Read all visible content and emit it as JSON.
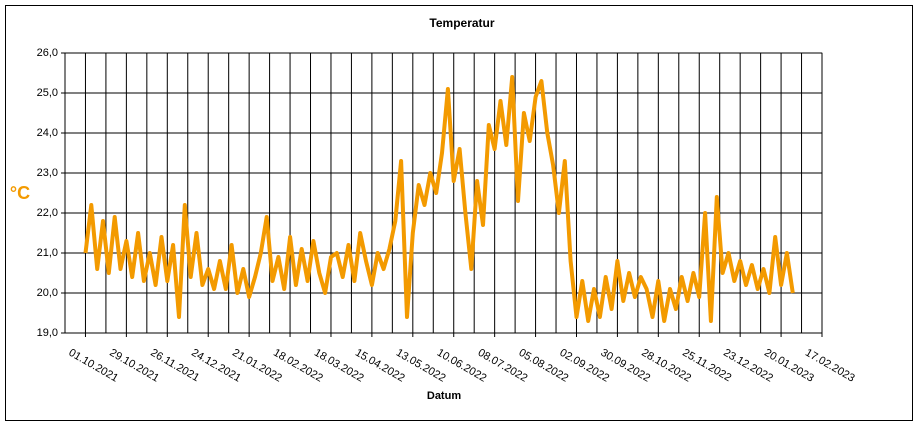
{
  "chart_data": {
    "type": "line",
    "title": "Temperatur",
    "x_label": "Datum",
    "y_label": "°C",
    "color": "#f39a00",
    "grid": true,
    "xlim": [
      "17.09.2021",
      "17.02.2023"
    ],
    "xticks": [
      "01.10.2021",
      "29.10.2021",
      "26.11.2021",
      "24.12.2021",
      "21.01.2022",
      "18.02.2022",
      "18.03.2022",
      "15.04.2022",
      "13.05.2022",
      "10.06.2022",
      "08.07.2022",
      "05.08.2022",
      "02.09.2022",
      "30.09.2022",
      "28.10.2022",
      "25.11.2022",
      "23.12.2022",
      "20.01.2023",
      "17.02.2023"
    ],
    "ylim": [
      19,
      26
    ],
    "yticks": [
      {
        "value": 19,
        "label": "19,0"
      },
      {
        "value": 20,
        "label": "20,0"
      },
      {
        "value": 21,
        "label": "21,0"
      },
      {
        "value": 22,
        "label": "22,0"
      },
      {
        "value": 23,
        "label": "23,0"
      },
      {
        "value": 24,
        "label": "24,0"
      },
      {
        "value": 25,
        "label": "25,0"
      },
      {
        "value": 26,
        "label": "26,0"
      }
    ],
    "x": [
      "01.10.2021",
      "05.10.2021",
      "09.10.2021",
      "13.10.2021",
      "17.10.2021",
      "21.10.2021",
      "25.10.2021",
      "29.10.2021",
      "02.11.2021",
      "06.11.2021",
      "10.11.2021",
      "14.11.2021",
      "18.11.2021",
      "22.11.2021",
      "26.11.2021",
      "30.11.2021",
      "04.12.2021",
      "08.12.2021",
      "12.12.2021",
      "16.12.2021",
      "20.12.2021",
      "24.12.2021",
      "28.12.2021",
      "01.01.2022",
      "05.01.2022",
      "09.01.2022",
      "13.01.2022",
      "17.01.2022",
      "21.01.2022",
      "25.01.2022",
      "29.01.2022",
      "02.02.2022",
      "06.02.2022",
      "10.02.2022",
      "14.02.2022",
      "18.02.2022",
      "22.02.2022",
      "26.02.2022",
      "02.03.2022",
      "06.03.2022",
      "10.03.2022",
      "14.03.2022",
      "18.03.2022",
      "22.03.2022",
      "26.03.2022",
      "30.03.2022",
      "03.04.2022",
      "07.04.2022",
      "11.04.2022",
      "15.04.2022",
      "19.04.2022",
      "23.04.2022",
      "27.04.2022",
      "01.05.2022",
      "05.05.2022",
      "09.05.2022",
      "13.05.2022",
      "17.05.2022",
      "21.05.2022",
      "25.05.2022",
      "29.05.2022",
      "02.06.2022",
      "06.06.2022",
      "10.06.2022",
      "14.06.2022",
      "18.06.2022",
      "22.06.2022",
      "26.06.2022",
      "30.06.2022",
      "04.07.2022",
      "08.07.2022",
      "12.07.2022",
      "16.07.2022",
      "20.07.2022",
      "24.07.2022",
      "28.07.2022",
      "01.08.2022",
      "05.08.2022",
      "09.08.2022",
      "13.08.2022",
      "17.08.2022",
      "21.08.2022",
      "25.08.2022",
      "29.08.2022",
      "02.09.2022",
      "06.09.2022",
      "10.09.2022",
      "14.09.2022",
      "18.09.2022",
      "22.09.2022",
      "26.09.2022",
      "30.09.2022",
      "04.10.2022",
      "08.10.2022",
      "12.10.2022",
      "16.10.2022",
      "20.10.2022",
      "24.10.2022",
      "28.10.2022",
      "01.11.2022",
      "05.11.2022",
      "09.11.2022",
      "13.11.2022",
      "17.11.2022",
      "21.11.2022",
      "25.11.2022",
      "29.11.2022",
      "03.12.2022",
      "07.12.2022",
      "11.12.2022",
      "15.12.2022",
      "19.12.2022",
      "23.12.2022",
      "27.12.2022",
      "31.12.2022",
      "04.01.2023",
      "08.01.2023",
      "12.01.2023",
      "16.01.2023",
      "20.01.2023",
      "24.01.2023",
      "28.01.2023"
    ],
    "values": [
      21.0,
      22.2,
      20.6,
      21.8,
      20.5,
      21.9,
      20.6,
      21.3,
      20.4,
      21.5,
      20.3,
      21.0,
      20.2,
      21.4,
      20.3,
      21.2,
      19.4,
      22.2,
      20.4,
      21.5,
      20.2,
      20.6,
      20.1,
      20.8,
      20.1,
      21.2,
      20.0,
      20.6,
      19.9,
      20.4,
      21.0,
      21.9,
      20.3,
      20.9,
      20.1,
      21.4,
      20.2,
      21.1,
      20.3,
      21.3,
      20.5,
      20.0,
      20.9,
      21.0,
      20.4,
      21.2,
      20.3,
      21.5,
      20.8,
      20.2,
      21.0,
      20.6,
      21.1,
      21.8,
      23.3,
      19.4,
      21.5,
      22.7,
      22.2,
      23.0,
      22.5,
      23.5,
      25.1,
      22.8,
      23.6,
      22.0,
      20.6,
      22.8,
      21.7,
      24.2,
      23.6,
      24.8,
      23.7,
      25.4,
      22.3,
      24.5,
      23.8,
      24.9,
      25.3,
      24.0,
      23.2,
      22.0,
      23.3,
      20.8,
      19.4,
      20.3,
      19.3,
      20.1,
      19.4,
      20.4,
      19.6,
      20.8,
      19.8,
      20.5,
      19.9,
      20.4,
      20.1,
      19.4,
      20.3,
      19.3,
      20.1,
      19.6,
      20.4,
      19.8,
      20.5,
      19.9,
      22.0,
      19.3,
      22.4,
      20.5,
      21.0,
      20.3,
      20.8,
      20.2,
      20.7,
      20.1,
      20.6,
      20.0,
      21.4,
      20.2,
      21.0,
      20.0
    ]
  }
}
